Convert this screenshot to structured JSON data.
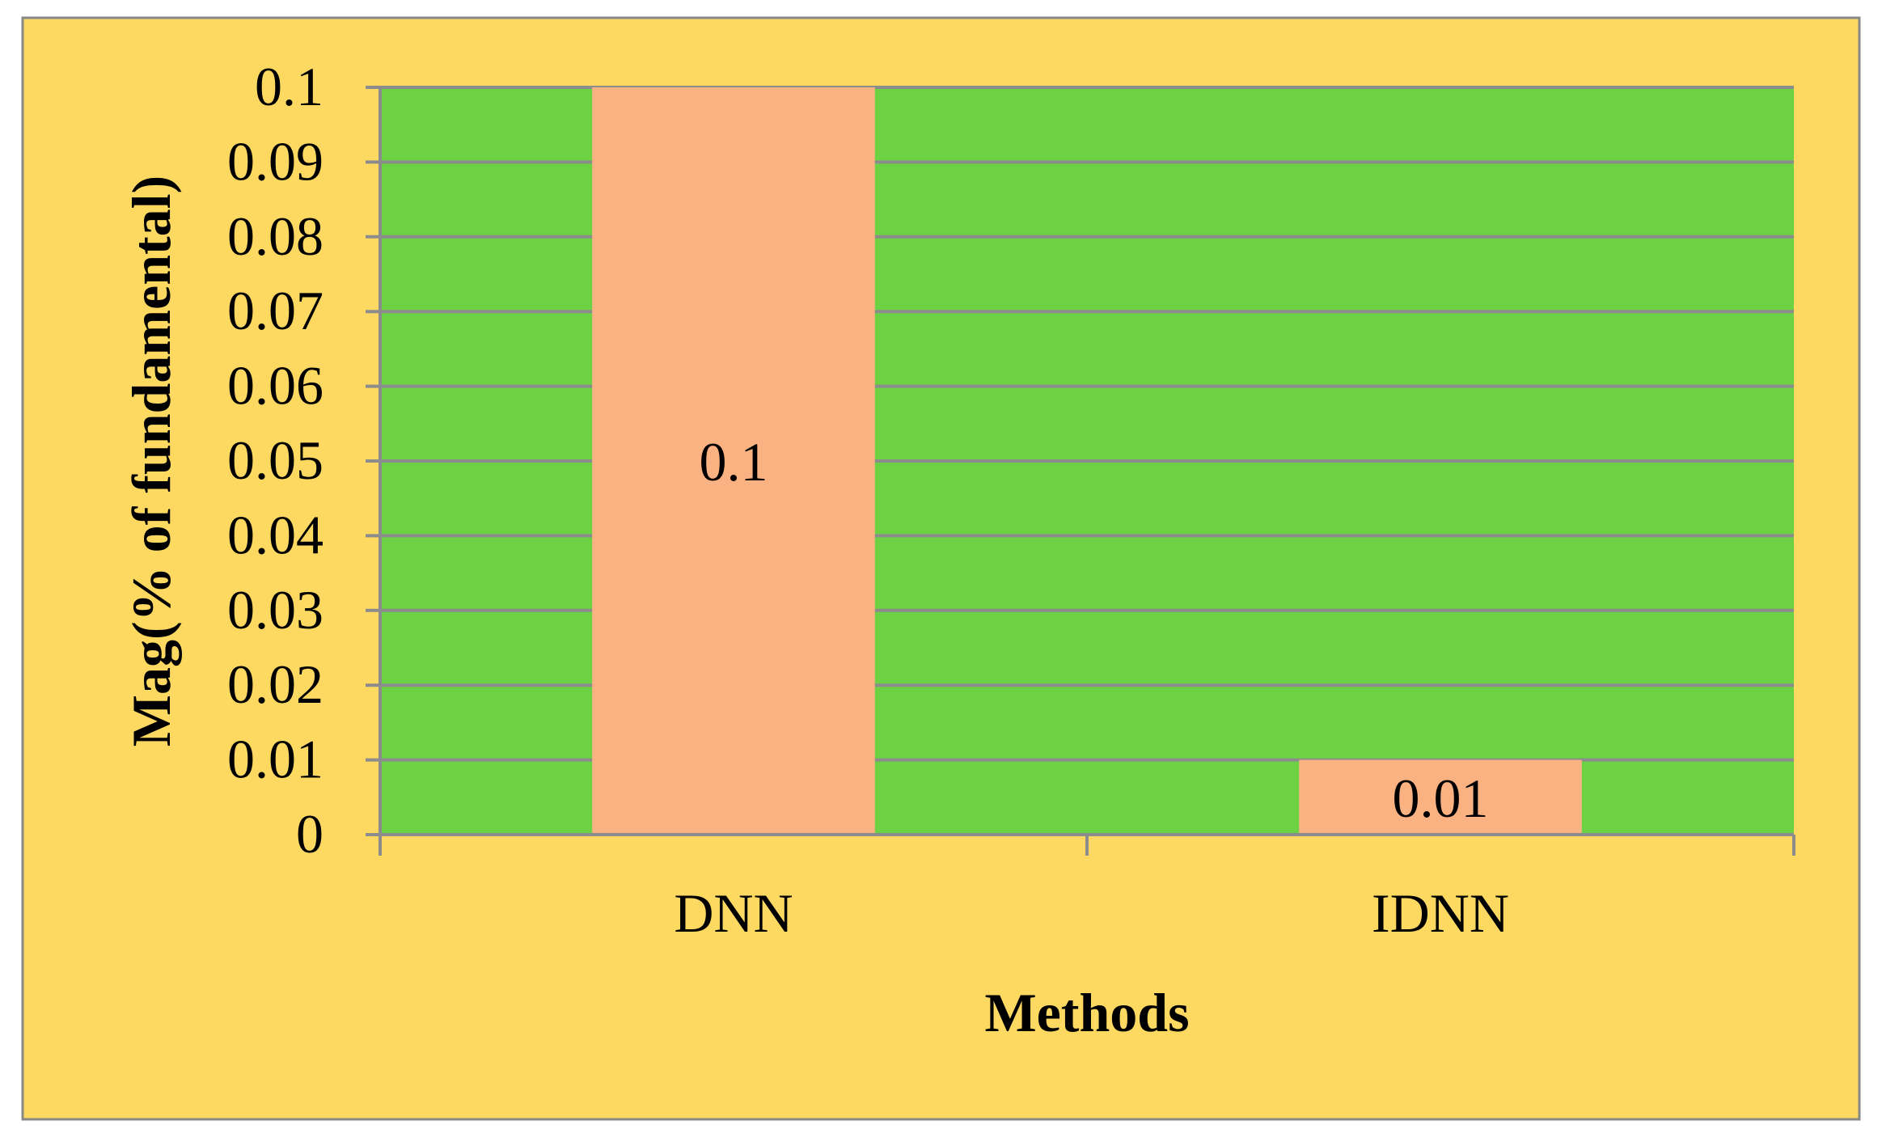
{
  "chart_data": {
    "type": "bar",
    "categories": [
      "DNN",
      "IDNN"
    ],
    "values": [
      0.1,
      0.01
    ],
    "data_labels": [
      "0.1",
      "0.01"
    ],
    "title": "",
    "xlabel": "Methods",
    "ylabel": "Mag(% of fundamental)",
    "ylim": [
      0,
      0.1
    ],
    "yticks": [
      "0",
      "0.01",
      "0.02",
      "0.03",
      "0.04",
      "0.05",
      "0.06",
      "0.07",
      "0.08",
      "0.09",
      "0.1"
    ],
    "grid": true,
    "legend": "none"
  },
  "colors": {
    "chart_area": "#fdd962",
    "plot_area": "#6dd144",
    "bar": "#fbb283",
    "gridline": "#8c8c8c",
    "text": "#000000",
    "border": "#888888"
  }
}
